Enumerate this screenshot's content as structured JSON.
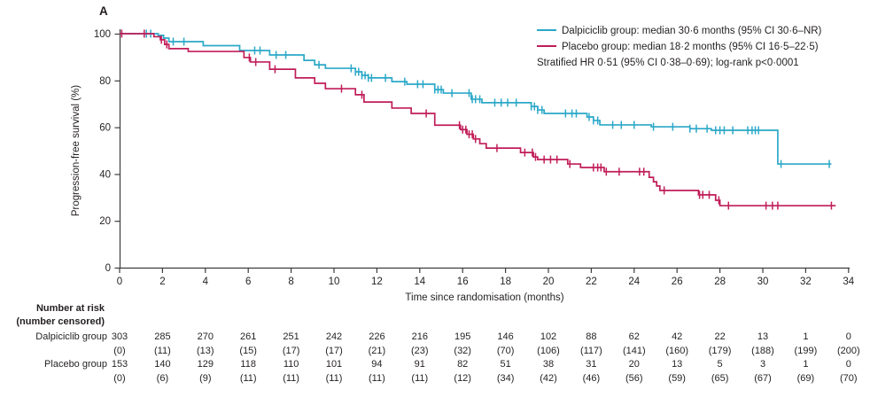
{
  "figure": {
    "panel_label": "A"
  },
  "chart_data": {
    "type": "line",
    "subtype": "kaplan-meier-step",
    "title": "",
    "xlabel": "Time since randomisation (months)",
    "ylabel": "Progression-free survival (%)",
    "xlim": [
      0,
      34
    ],
    "ylim": [
      0,
      100
    ],
    "x_ticks": [
      0,
      2,
      4,
      6,
      8,
      10,
      12,
      14,
      16,
      18,
      20,
      22,
      24,
      26,
      28,
      30,
      32,
      34
    ],
    "y_ticks": [
      0,
      20,
      40,
      60,
      80,
      100
    ],
    "grid": "off",
    "legend_position": "top-right",
    "annotation": "Stratified HR 0·51 (95% CI 0·38–0·69); log-rank p<0·0001",
    "series": [
      {
        "name": "Dalpiciclib group",
        "label": "Dalpiciclib group: median 30·6 months (95% CI 30·6–NR)",
        "color": "#2BA8C8",
        "steps": [
          [
            0,
            100
          ],
          [
            1.8,
            99.3
          ],
          [
            2.05,
            98.1
          ],
          [
            2.3,
            96.6
          ],
          [
            3.9,
            94.9
          ],
          [
            5.6,
            92.8
          ],
          [
            7.0,
            90.9
          ],
          [
            8.6,
            88.6
          ],
          [
            9.1,
            86.7
          ],
          [
            9.6,
            85.2
          ],
          [
            11.0,
            83.7
          ],
          [
            11.3,
            82.2
          ],
          [
            11.6,
            81.1
          ],
          [
            12.7,
            79.5
          ],
          [
            13.4,
            78.4
          ],
          [
            14.7,
            76.1
          ],
          [
            15.1,
            74.6
          ],
          [
            16.4,
            72.0
          ],
          [
            16.9,
            70.5
          ],
          [
            19.2,
            68.9
          ],
          [
            19.5,
            67.4
          ],
          [
            19.8,
            65.9
          ],
          [
            21.8,
            64.4
          ],
          [
            22.1,
            62.9
          ],
          [
            22.4,
            61.0
          ],
          [
            24.8,
            60.2
          ],
          [
            26.6,
            59.4
          ],
          [
            27.6,
            58.7
          ],
          [
            30.7,
            44.3
          ],
          [
            33.2,
            44.3
          ]
        ],
        "censor_times": [
          1.25,
          1.45,
          2.5,
          3.0,
          6.3,
          6.55,
          7.3,
          7.75,
          9.3,
          10.8,
          11.0,
          11.15,
          11.3,
          11.45,
          11.6,
          11.75,
          12.4,
          13.3,
          13.9,
          14.15,
          14.7,
          14.85,
          15.0,
          15.5,
          16.3,
          16.45,
          16.6,
          16.8,
          17.5,
          17.8,
          18.1,
          18.5,
          19.2,
          19.35,
          19.5,
          19.7,
          20.8,
          21.1,
          21.3,
          21.9,
          22.1,
          22.3,
          23.0,
          23.4,
          24.0,
          24.9,
          25.8,
          26.6,
          26.9,
          27.4,
          27.8,
          28.0,
          28.2,
          28.6,
          29.3,
          29.5,
          29.65,
          29.8,
          30.85,
          33.1
        ]
      },
      {
        "name": "Placebo group",
        "label": "Placebo group: median 18·2 months (95% CI 16·5–22·5)",
        "color": "#C01D58",
        "steps": [
          [
            0,
            100
          ],
          [
            1.6,
            98.7
          ],
          [
            1.9,
            97.4
          ],
          [
            2.1,
            95.4
          ],
          [
            2.3,
            93.6
          ],
          [
            3.2,
            92.4
          ],
          [
            5.8,
            89.8
          ],
          [
            6.1,
            87.9
          ],
          [
            7.0,
            84.8
          ],
          [
            8.2,
            81.1
          ],
          [
            9.1,
            78.8
          ],
          [
            9.6,
            76.5
          ],
          [
            11.0,
            73.9
          ],
          [
            11.4,
            70.8
          ],
          [
            12.7,
            68.2
          ],
          [
            13.6,
            65.9
          ],
          [
            14.7,
            60.9
          ],
          [
            15.9,
            59.0
          ],
          [
            16.2,
            57.0
          ],
          [
            16.5,
            55.0
          ],
          [
            16.8,
            53.0
          ],
          [
            17.1,
            51.1
          ],
          [
            18.7,
            49.2
          ],
          [
            19.3,
            47.3
          ],
          [
            19.5,
            46.2
          ],
          [
            20.9,
            44.3
          ],
          [
            21.5,
            42.8
          ],
          [
            22.6,
            41.0
          ],
          [
            24.7,
            38.6
          ],
          [
            24.9,
            36.7
          ],
          [
            25.05,
            34.9
          ],
          [
            25.2,
            33.0
          ],
          [
            27.0,
            31.1
          ],
          [
            27.8,
            28.8
          ],
          [
            28.0,
            26.5
          ],
          [
            33.4,
            26.5
          ]
        ],
        "censor_times": [
          0.1,
          1.15,
          1.95,
          2.2,
          6.05,
          6.35,
          7.25,
          10.35,
          11.3,
          14.3,
          15.85,
          16.0,
          16.15,
          16.3,
          16.45,
          16.6,
          17.6,
          18.9,
          19.25,
          19.4,
          19.8,
          20.1,
          20.4,
          21.0,
          22.1,
          22.3,
          22.45,
          22.7,
          23.3,
          24.25,
          24.45,
          25.4,
          27.05,
          27.2,
          27.5,
          27.95,
          28.4,
          30.15,
          30.45,
          30.7,
          33.2
        ]
      }
    ]
  },
  "risk_table": {
    "header_line1": "Number at risk",
    "header_line2": "(number censored)",
    "months": [
      0,
      2,
      4,
      6,
      8,
      10,
      12,
      14,
      16,
      18,
      20,
      22,
      24,
      26,
      28,
      30,
      32,
      34
    ],
    "rows": [
      {
        "label": "Dalpiciclib group",
        "n": [
          "303",
          "285",
          "270",
          "261",
          "251",
          "242",
          "226",
          "216",
          "195",
          "146",
          "102",
          "88",
          "62",
          "42",
          "22",
          "13",
          "1",
          "0"
        ],
        "censored": [
          "(0)",
          "(11)",
          "(13)",
          "(15)",
          "(17)",
          "(17)",
          "(21)",
          "(23)",
          "(32)",
          "(70)",
          "(106)",
          "(117)",
          "(141)",
          "(160)",
          "(179)",
          "(188)",
          "(199)",
          "(200)"
        ]
      },
      {
        "label": "Placebo group",
        "n": [
          "153",
          "140",
          "129",
          "118",
          "110",
          "101",
          "94",
          "91",
          "82",
          "51",
          "38",
          "31",
          "20",
          "13",
          "5",
          "3",
          "1",
          "0"
        ],
        "censored": [
          "(0)",
          "(6)",
          "(9)",
          "(11)",
          "(11)",
          "(11)",
          "(11)",
          "(11)",
          "(12)",
          "(34)",
          "(42)",
          "(46)",
          "(56)",
          "(59)",
          "(65)",
          "(67)",
          "(69)",
          "(70)"
        ]
      }
    ]
  },
  "colors": {
    "axis": "#3d3d3f",
    "text": "#231f20"
  }
}
